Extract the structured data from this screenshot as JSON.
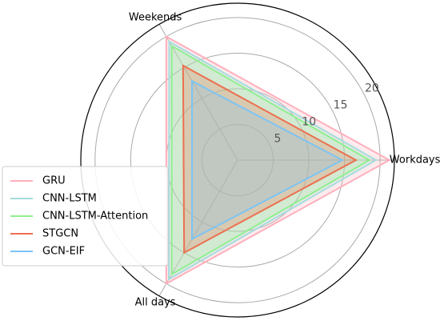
{
  "chart_data": {
    "type": "radar",
    "categories": [
      "Workdays",
      "Weekends",
      "All days"
    ],
    "series": [
      {
        "name": "GRU",
        "color": "#ffb0bc",
        "values": [
          21.3,
          20,
          20
        ]
      },
      {
        "name": "CNN-LSTM",
        "color": "#a6dcdc",
        "values": [
          19.4,
          19.2,
          19.3
        ]
      },
      {
        "name": "CNN-LSTM-Attention",
        "color": "#8ef08e",
        "values": [
          18.5,
          18.5,
          18.5
        ]
      },
      {
        "name": "STGCN",
        "color": "#ec7050",
        "values": [
          16.6,
          15.3,
          15
        ]
      },
      {
        "name": "GCN-EIF",
        "color": "#7cc4f4",
        "values": [
          14.7,
          12.8,
          12.8
        ]
      }
    ],
    "rlim": [
      0,
      22
    ],
    "rticks": [
      5,
      10,
      15,
      20
    ],
    "grid": true,
    "legend": "left"
  }
}
